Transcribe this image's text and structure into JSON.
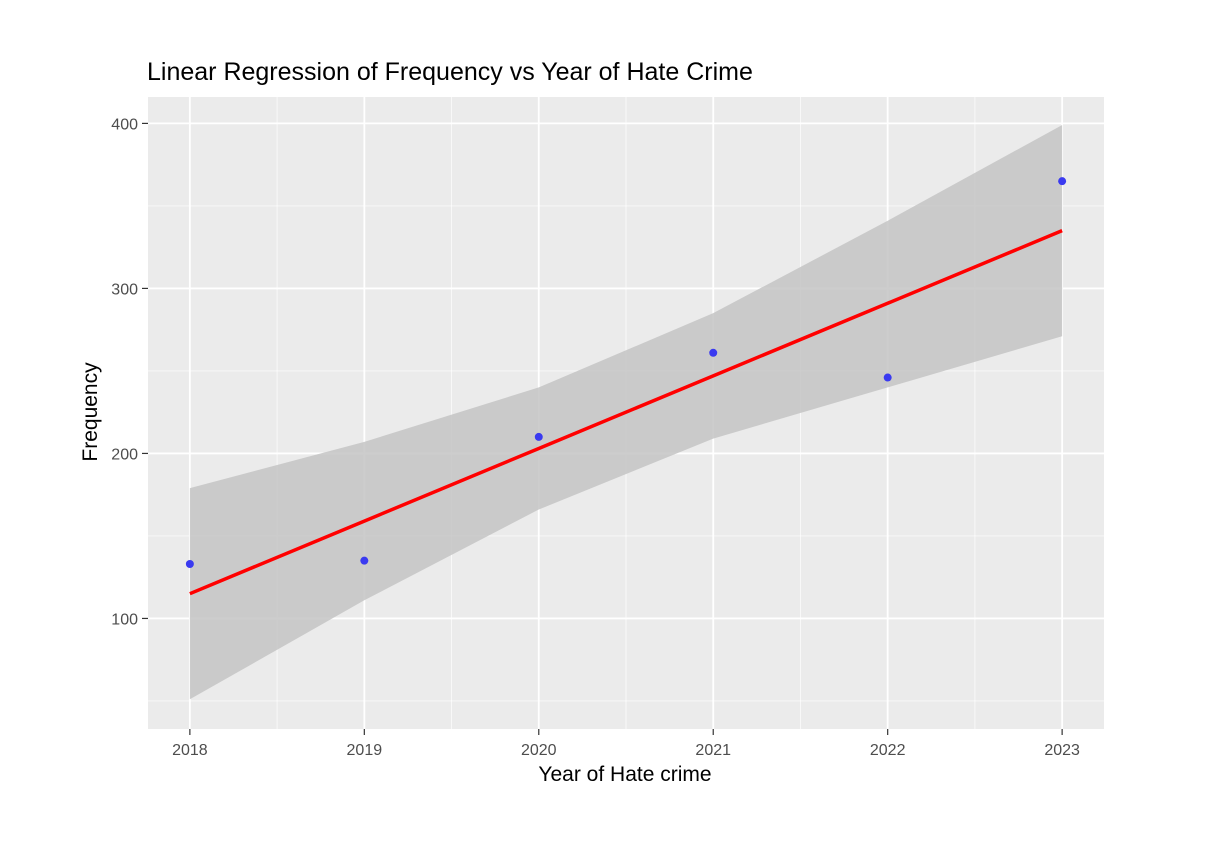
{
  "chart_data": {
    "type": "scatter",
    "title": "Linear Regression of Frequency vs Year of Hate Crime",
    "xlabel": "Year of Hate crime",
    "ylabel": "Frequency",
    "x": [
      2018,
      2019,
      2020,
      2021,
      2022,
      2023
    ],
    "y": [
      133,
      135,
      210,
      261,
      246,
      365
    ],
    "xlim": [
      2017.76,
      2023.24
    ],
    "ylim": [
      33,
      416
    ],
    "xticks": [
      2018,
      2019,
      2020,
      2021,
      2022,
      2023
    ],
    "xtick_labels": [
      "2018",
      "2019",
      "2020",
      "2021",
      "2022",
      "2023"
    ],
    "yticks": [
      100,
      200,
      300,
      400
    ],
    "ytick_labels": [
      "100",
      "200",
      "300",
      "400"
    ],
    "grid": true,
    "legend": "none",
    "regression": {
      "method": "lm",
      "x": [
        2018,
        2019,
        2020,
        2021,
        2022,
        2023
      ],
      "fit": [
        115,
        159,
        203,
        247,
        291,
        335
      ],
      "ci_lower": [
        51,
        111,
        166,
        209,
        240,
        271
      ],
      "ci_upper": [
        179,
        207,
        240,
        285,
        341,
        399
      ]
    },
    "colors": {
      "points": "#3a3af0",
      "fit_line": "#ff0000",
      "ribbon": "#c4c4c4",
      "panel_bg": "#ebebeb",
      "grid": "#ffffff"
    }
  }
}
